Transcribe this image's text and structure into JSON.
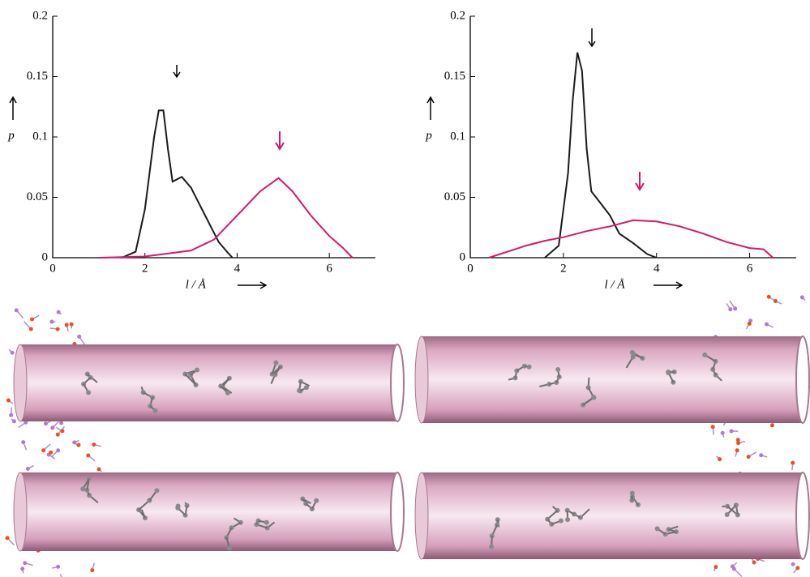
{
  "chart_data": [
    {
      "type": "line",
      "y_label": "p",
      "x_label": "l / Å",
      "xlim": [
        0,
        7
      ],
      "ylim": [
        0,
        0.2
      ],
      "xticks": [
        0,
        2,
        4,
        6
      ],
      "yticks": [
        0,
        0.05,
        0.1,
        0.15,
        0.2
      ],
      "series": [
        {
          "color": "#1a1a1a",
          "x": [
            1.5,
            1.8,
            2.0,
            2.2,
            2.3,
            2.4,
            2.5,
            2.6,
            2.8,
            3.0,
            3.2,
            3.4,
            3.6,
            3.8,
            3.9
          ],
          "values": [
            0,
            0.005,
            0.04,
            0.1,
            0.122,
            0.122,
            0.09,
            0.063,
            0.067,
            0.058,
            0.043,
            0.028,
            0.013,
            0.004,
            0
          ]
        },
        {
          "color": "#d6176c",
          "x": [
            1.0,
            2.0,
            3.0,
            3.5,
            4.0,
            4.5,
            4.9,
            5.2,
            5.6,
            6.0,
            6.3,
            6.5
          ],
          "values": [
            0,
            0.001,
            0.006,
            0.015,
            0.035,
            0.055,
            0.066,
            0.055,
            0.035,
            0.018,
            0.008,
            0
          ]
        }
      ]
    },
    {
      "type": "line",
      "y_label": "p",
      "x_label": "l / Å",
      "xlim": [
        0,
        7
      ],
      "ylim": [
        0,
        0.2
      ],
      "xticks": [
        0,
        2,
        4,
        6
      ],
      "yticks": [
        0,
        0.05,
        0.1,
        0.15,
        0.2
      ],
      "series": [
        {
          "color": "#1a1a1a",
          "x": [
            1.6,
            1.9,
            2.1,
            2.2,
            2.3,
            2.4,
            2.5,
            2.6,
            2.8,
            3.0,
            3.2,
            3.5,
            3.8,
            4.0
          ],
          "values": [
            0,
            0.01,
            0.07,
            0.13,
            0.17,
            0.155,
            0.09,
            0.055,
            0.045,
            0.035,
            0.02,
            0.012,
            0.003,
            0
          ]
        },
        {
          "color": "#d6176c",
          "x": [
            0.4,
            0.8,
            1.2,
            1.6,
            2.0,
            2.5,
            3.0,
            3.5,
            4.0,
            4.5,
            5.0,
            5.5,
            6.0,
            6.3,
            6.5
          ],
          "values": [
            0,
            0.005,
            0.01,
            0.014,
            0.017,
            0.022,
            0.026,
            0.031,
            0.03,
            0.026,
            0.02,
            0.013,
            0.008,
            0.007,
            0
          ]
        }
      ]
    }
  ]
}
